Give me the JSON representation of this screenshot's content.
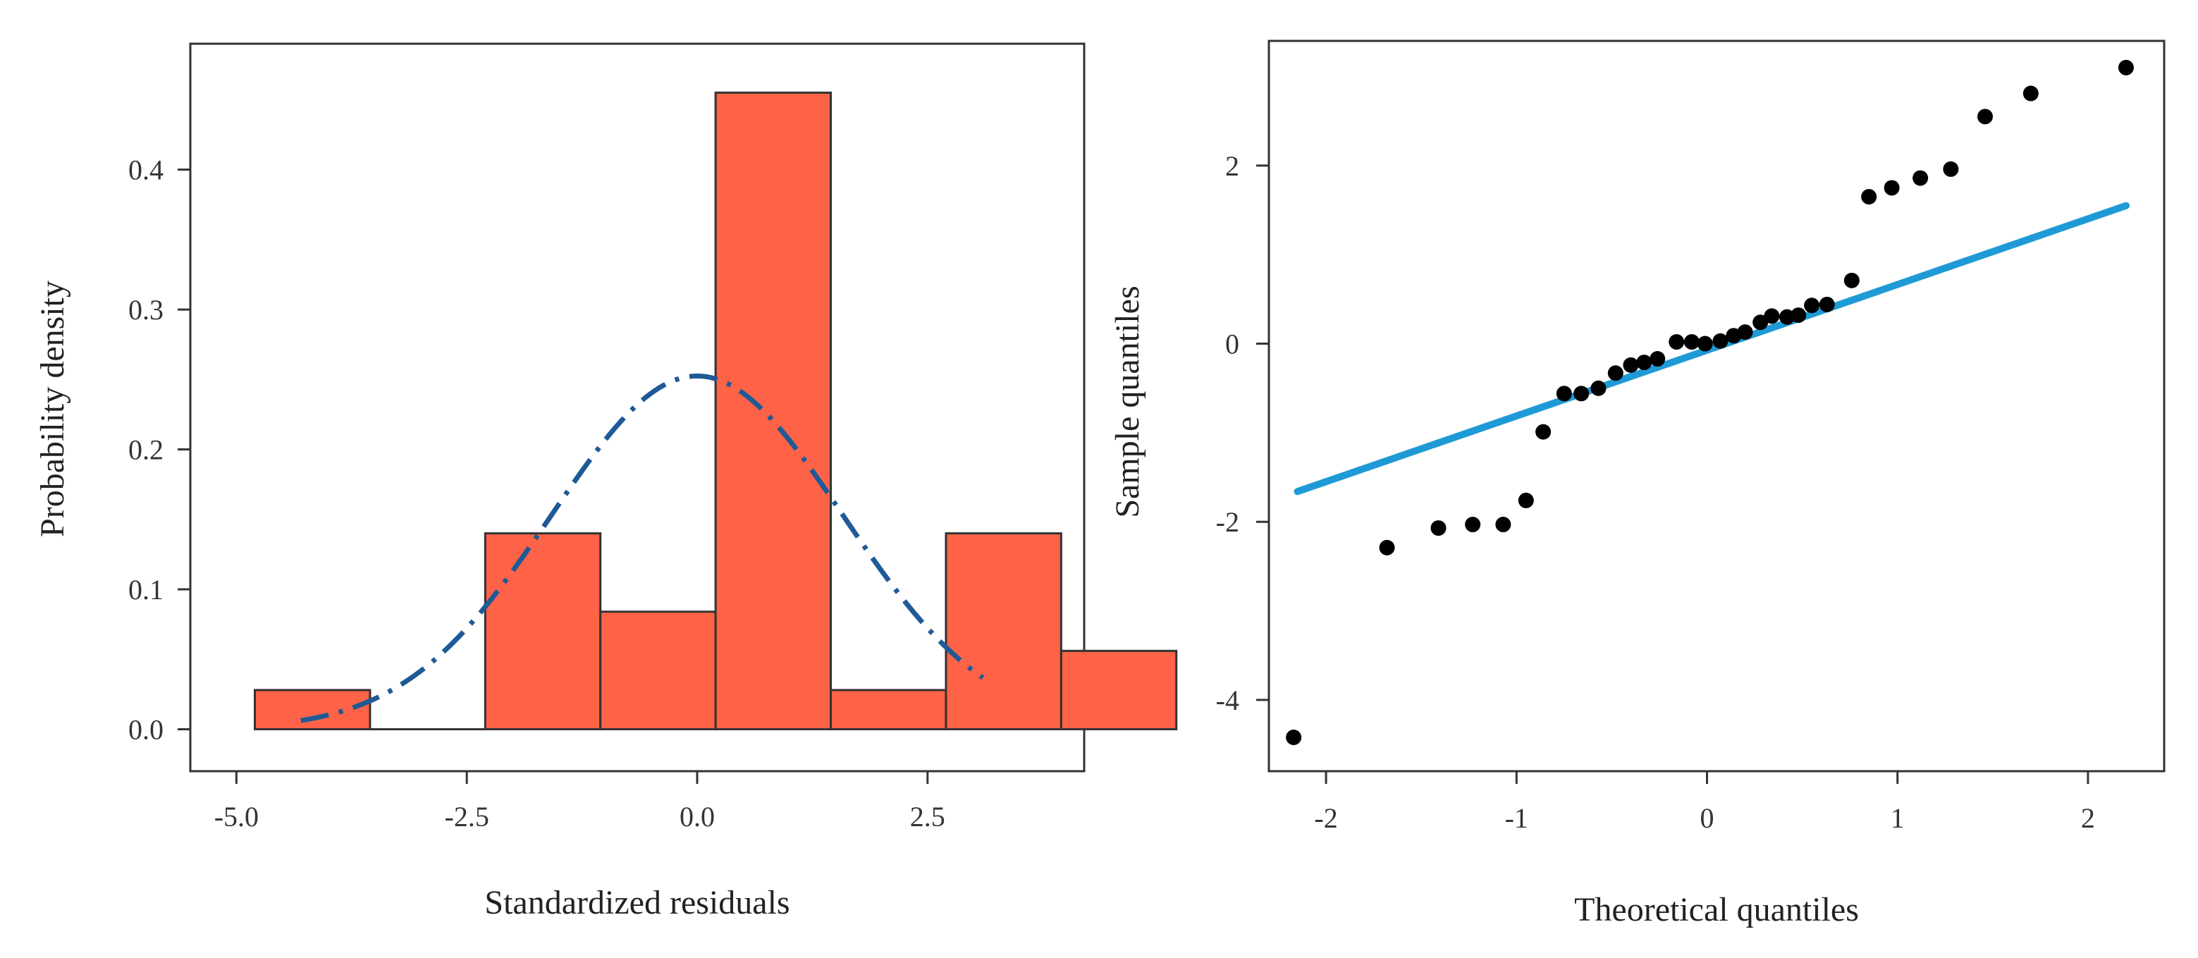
{
  "chart_data": [
    {
      "type": "bar",
      "subtype": "histogram-with-density-curve",
      "xlabel": "Standardized residuals",
      "ylabel": "Probability density",
      "xlim": [
        -5.5,
        4.2
      ],
      "ylim": [
        -0.03,
        0.49
      ],
      "xticks": [
        -5.0,
        -2.5,
        0.0,
        2.5
      ],
      "xtick_labels": [
        "-5.0",
        "-2.5",
        "0.0",
        "2.5"
      ],
      "yticks": [
        0.0,
        0.1,
        0.2,
        0.3,
        0.4
      ],
      "ytick_labels": [
        "0.0",
        "0.1",
        "0.2",
        "0.3",
        "0.4"
      ],
      "bar_color": "#ff6347",
      "bins": [
        {
          "from": -4.8,
          "to": -3.55,
          "value": 0.028
        },
        {
          "from": -3.55,
          "to": -2.3,
          "value": 0.0
        },
        {
          "from": -2.3,
          "to": -1.05,
          "value": 0.14
        },
        {
          "from": -1.05,
          "to": 0.2,
          "value": 0.084
        },
        {
          "from": 0.2,
          "to": 1.45,
          "value": 0.455
        },
        {
          "from": 1.45,
          "to": 2.7,
          "value": 0.028
        },
        {
          "from": 2.7,
          "to": 3.95,
          "value": 0.14
        },
        {
          "from": 3.95,
          "to": 5.2,
          "value": 0.056
        }
      ],
      "density_curve": {
        "style": "dash-dot",
        "color": "#1f5a96",
        "mean": 0.0,
        "sd": 1.58,
        "x_range": [
          -4.3,
          3.1
        ]
      }
    },
    {
      "type": "scatter",
      "subtype": "normal-qq-plot",
      "xlabel": "Theoretical quantiles",
      "ylabel": "Sample quantiles",
      "xlim": [
        -2.3,
        2.4
      ],
      "ylim": [
        -4.8,
        3.4
      ],
      "xticks": [
        -2,
        -1,
        0,
        1,
        2
      ],
      "xtick_labels": [
        "-2",
        "-1",
        "0",
        "1",
        "2"
      ],
      "yticks": [
        -4,
        -2,
        0,
        2
      ],
      "ytick_labels": [
        "-4",
        "-2",
        "0",
        "2"
      ],
      "point_color": "#000000",
      "points": [
        {
          "x": -2.17,
          "y": -4.42
        },
        {
          "x": -1.68,
          "y": -2.29
        },
        {
          "x": -1.41,
          "y": -2.07
        },
        {
          "x": -1.23,
          "y": -2.03
        },
        {
          "x": -1.07,
          "y": -2.03
        },
        {
          "x": -0.95,
          "y": -1.76
        },
        {
          "x": -0.86,
          "y": -0.99
        },
        {
          "x": -0.75,
          "y": -0.56
        },
        {
          "x": -0.66,
          "y": -0.56
        },
        {
          "x": -0.57,
          "y": -0.5
        },
        {
          "x": -0.48,
          "y": -0.33
        },
        {
          "x": -0.4,
          "y": -0.24
        },
        {
          "x": -0.33,
          "y": -0.21
        },
        {
          "x": -0.26,
          "y": -0.17
        },
        {
          "x": -0.16,
          "y": 0.02
        },
        {
          "x": -0.08,
          "y": 0.02
        },
        {
          "x": -0.01,
          "y": 0.0
        },
        {
          "x": 0.07,
          "y": 0.03
        },
        {
          "x": 0.14,
          "y": 0.09
        },
        {
          "x": 0.2,
          "y": 0.13
        },
        {
          "x": 0.28,
          "y": 0.24
        },
        {
          "x": 0.34,
          "y": 0.31
        },
        {
          "x": 0.42,
          "y": 0.3
        },
        {
          "x": 0.48,
          "y": 0.32
        },
        {
          "x": 0.55,
          "y": 0.43
        },
        {
          "x": 0.63,
          "y": 0.44
        },
        {
          "x": 0.76,
          "y": 0.71
        },
        {
          "x": 0.85,
          "y": 1.65
        },
        {
          "x": 0.97,
          "y": 1.75
        },
        {
          "x": 1.12,
          "y": 1.86
        },
        {
          "x": 1.28,
          "y": 1.96
        },
        {
          "x": 1.46,
          "y": 2.55
        },
        {
          "x": 1.7,
          "y": 2.81
        },
        {
          "x": 2.2,
          "y": 3.1
        }
      ],
      "reference_line": {
        "color": "#1e9ad6",
        "from": {
          "x": -2.15,
          "y": -1.66
        },
        "to": {
          "x": 2.2,
          "y": 1.55
        }
      }
    }
  ]
}
